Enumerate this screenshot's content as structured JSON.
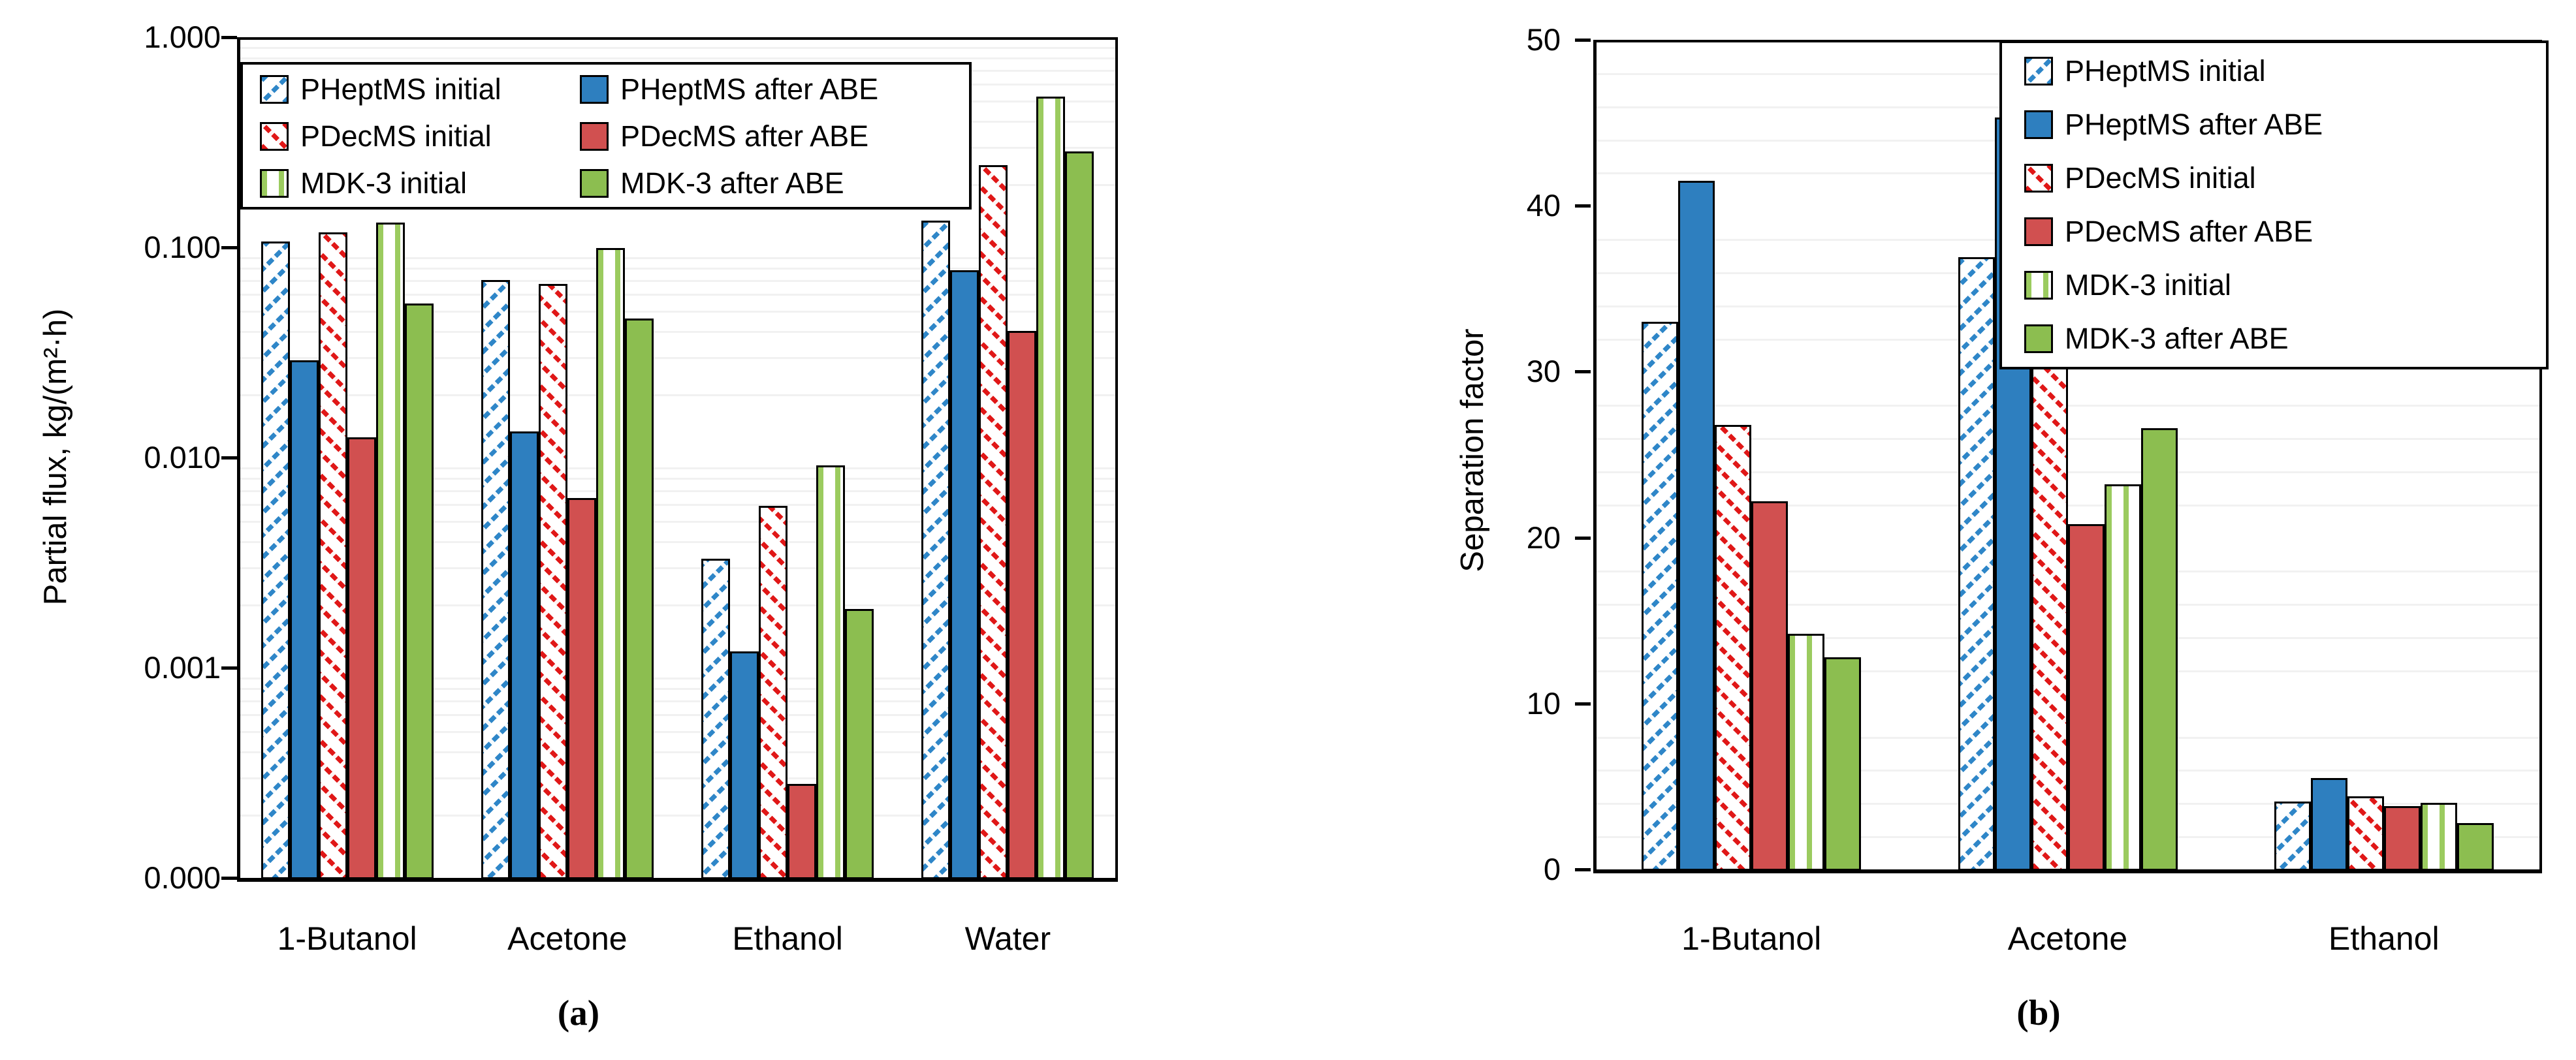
{
  "figure_title": "",
  "captions": {
    "a": "(a)",
    "b": "(b)"
  },
  "colors": {
    "blue_solid": "#2E7FBF",
    "blue_hatch": "#2E86C8",
    "red_solid": "#D15050",
    "red_hatch": "#E01717",
    "green_solid": "#8CBE50",
    "green_stripe": "#9BCB5F",
    "gridline": "#F1F1F1",
    "axis": "#000000"
  },
  "chart_data": [
    {
      "type": "bar",
      "caption": "(a)",
      "title": "",
      "xlabel": "",
      "ylabel": "Partial flux, kg/(m²·h)",
      "yscale": "log",
      "ylim": [
        0.0001,
        1.0
      ],
      "ytick_values": [
        1.0,
        0.1,
        0.01,
        0.001,
        0.0001
      ],
      "ytick_labels": [
        "1.000",
        "0.100",
        "0.010",
        "0.001",
        "0.000"
      ],
      "grid": "minor-log",
      "legend_position": "top-left",
      "legend_columns": 2,
      "categories": [
        "1-Butanol",
        "Acetone",
        "Ethanol",
        "Water"
      ],
      "series": [
        {
          "name": "PHeptMS initial",
          "style": "blue-hatch",
          "values": [
            0.107,
            0.07,
            0.0033,
            0.134
          ]
        },
        {
          "name": "PHeptMS after ABE",
          "style": "blue",
          "values": [
            0.029,
            0.0133,
            0.0012,
            0.078
          ]
        },
        {
          "name": "PDecMS initial",
          "style": "red-hatch",
          "values": [
            0.118,
            0.067,
            0.0059,
            0.246
          ]
        },
        {
          "name": "PDecMS after ABE",
          "style": "red",
          "values": [
            0.0125,
            0.0064,
            0.00028,
            0.04
          ]
        },
        {
          "name": "MDK-3 initial",
          "style": "green-stripe",
          "values": [
            0.131,
            0.099,
            0.0092,
            0.52
          ]
        },
        {
          "name": "MDK-3 after ABE",
          "style": "green",
          "values": [
            0.054,
            0.046,
            0.0019,
            0.286
          ]
        }
      ]
    },
    {
      "type": "bar",
      "caption": "(b)",
      "title": "",
      "xlabel": "",
      "ylabel": "Separation factor",
      "yscale": "linear",
      "ylim": [
        0,
        50
      ],
      "ytick_values": [
        0,
        10,
        20,
        30,
        40,
        50
      ],
      "ytick_labels": [
        "0",
        "10",
        "20",
        "30",
        "40",
        "50"
      ],
      "grid": "minor-every-2",
      "legend_position": "top-right",
      "legend_columns": 1,
      "categories": [
        "1-Butanol",
        "Acetone",
        "Ethanol"
      ],
      "series": [
        {
          "name": "PHeptMS initial",
          "style": "blue-hatch",
          "values": [
            33.0,
            36.9,
            4.1
          ]
        },
        {
          "name": "PHeptMS after ABE",
          "style": "blue",
          "values": [
            41.5,
            45.3,
            5.5
          ]
        },
        {
          "name": "PDecMS initial",
          "style": "red-hatch",
          "values": [
            26.8,
            32.0,
            4.4
          ]
        },
        {
          "name": "PDecMS after ABE",
          "style": "red",
          "values": [
            22.2,
            20.8,
            3.8
          ]
        },
        {
          "name": "MDK-3 initial",
          "style": "green-stripe",
          "values": [
            14.2,
            23.2,
            4.0
          ]
        },
        {
          "name": "MDK-3 after ABE",
          "style": "green",
          "values": [
            12.8,
            26.6,
            2.8
          ]
        }
      ]
    }
  ]
}
